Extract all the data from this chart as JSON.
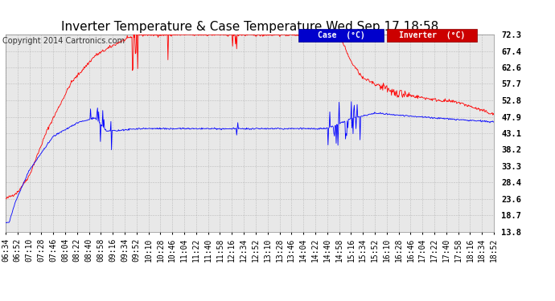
{
  "title": "Inverter Temperature & Case Temperature Wed Sep 17 18:58",
  "copyright": "Copyright 2014 Cartronics.com",
  "background_color": "#ffffff",
  "plot_bg_color": "#e8e8e8",
  "grid_color": "#aaaaaa",
  "yticks": [
    13.8,
    18.7,
    23.6,
    28.4,
    33.3,
    38.2,
    43.1,
    47.9,
    52.8,
    57.7,
    62.6,
    67.4,
    72.3
  ],
  "ymin": 13.8,
  "ymax": 72.3,
  "xtick_labels": [
    "06:34",
    "06:52",
    "07:10",
    "07:28",
    "07:46",
    "08:04",
    "08:22",
    "08:40",
    "08:58",
    "09:16",
    "09:34",
    "09:52",
    "10:10",
    "10:28",
    "10:46",
    "11:04",
    "11:22",
    "11:40",
    "11:58",
    "12:16",
    "12:34",
    "12:52",
    "13:10",
    "13:28",
    "13:46",
    "14:04",
    "14:22",
    "14:40",
    "14:58",
    "15:16",
    "15:34",
    "15:52",
    "16:10",
    "16:28",
    "16:46",
    "17:04",
    "17:22",
    "17:40",
    "17:58",
    "18:16",
    "18:34",
    "18:52"
  ],
  "legend_case_label": "Case  (°C)",
  "legend_inverter_label": "Inverter  (°C)",
  "case_color": "#0000ff",
  "inverter_color": "#ff0000",
  "case_legend_bg": "#0000cc",
  "inverter_legend_bg": "#cc0000",
  "title_fontsize": 11,
  "axis_fontsize": 7.5,
  "copyright_fontsize": 7,
  "legend_fontsize": 7
}
